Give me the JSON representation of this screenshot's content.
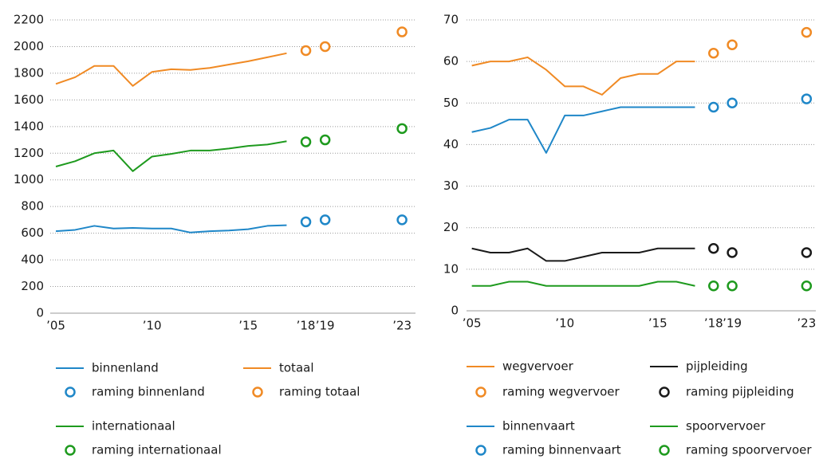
{
  "chart_data": [
    {
      "type": "line",
      "x": [
        2005,
        2006,
        2007,
        2008,
        2009,
        2010,
        2011,
        2012,
        2013,
        2014,
        2015,
        2016,
        2017,
        2018,
        2019,
        2023
      ],
      "xlim": [
        2004.5,
        2023.7
      ],
      "xticks": [
        {
          "value": 2005,
          "label": "’05"
        },
        {
          "value": 2010,
          "label": "’10"
        },
        {
          "value": 2015,
          "label": "’15"
        },
        {
          "value": 2018,
          "label": "’18"
        },
        {
          "value": 2019,
          "label": "’19"
        },
        {
          "value": 2023,
          "label": "’23"
        }
      ],
      "ylim": [
        0,
        2200
      ],
      "yticks": [
        0,
        200,
        400,
        600,
        800,
        1000,
        1200,
        1400,
        1600,
        1800,
        2000,
        2200
      ],
      "grid": true,
      "series": [
        {
          "name": "binnenland",
          "style": "line",
          "color": "#1f87c8",
          "values": [
            615,
            625,
            655,
            635,
            640,
            635,
            635,
            605,
            615,
            620,
            630,
            655,
            660,
            null,
            null,
            null
          ]
        },
        {
          "name": "totaal",
          "style": "line",
          "color": "#f08a24",
          "values": [
            1720,
            1770,
            1855,
            1855,
            1705,
            1810,
            1830,
            1825,
            1840,
            1865,
            1890,
            1920,
            1950,
            null,
            null,
            null
          ]
        },
        {
          "name": "raming binnenland",
          "style": "circle",
          "color": "#1f87c8",
          "values": [
            null,
            null,
            null,
            null,
            null,
            null,
            null,
            null,
            null,
            null,
            null,
            null,
            null,
            685,
            700,
            700
          ]
        },
        {
          "name": "raming totaal",
          "style": "circle",
          "color": "#f08a24",
          "values": [
            null,
            null,
            null,
            null,
            null,
            null,
            null,
            null,
            null,
            null,
            null,
            null,
            null,
            1970,
            2000,
            2110
          ]
        },
        {
          "name": "internationaal",
          "style": "line",
          "color": "#1e9a1e",
          "values": [
            1100,
            1140,
            1200,
            1220,
            1065,
            1175,
            1195,
            1220,
            1220,
            1235,
            1255,
            1265,
            1290,
            null,
            null,
            null
          ]
        },
        {
          "name": "raming internationaal",
          "style": "circle",
          "color": "#1e9a1e",
          "values": [
            null,
            null,
            null,
            null,
            null,
            null,
            null,
            null,
            null,
            null,
            null,
            null,
            null,
            1285,
            1300,
            1385
          ]
        }
      ]
    },
    {
      "type": "line",
      "x": [
        2005,
        2006,
        2007,
        2008,
        2009,
        2010,
        2011,
        2012,
        2013,
        2014,
        2015,
        2016,
        2017,
        2018,
        2019,
        2023
      ],
      "xlim": [
        2004.5,
        2023.5
      ],
      "xticks": [
        {
          "value": 2005,
          "label": "’05"
        },
        {
          "value": 2010,
          "label": "’10"
        },
        {
          "value": 2015,
          "label": "’15"
        },
        {
          "value": 2018,
          "label": "’18"
        },
        {
          "value": 2019,
          "label": "’19"
        },
        {
          "value": 2023,
          "label": "’23"
        }
      ],
      "ylim": [
        0,
        70
      ],
      "yticks": [
        0,
        10,
        20,
        30,
        40,
        50,
        60,
        70
      ],
      "grid": true,
      "series": [
        {
          "name": "wegvervoer",
          "style": "line",
          "color": "#f08a24",
          "values": [
            59,
            60,
            60,
            61,
            58,
            54,
            54,
            52,
            56,
            57,
            57,
            60,
            60,
            null,
            null,
            null
          ]
        },
        {
          "name": "pijpleiding",
          "style": "line",
          "color": "#1a1a1a",
          "values": [
            15,
            14,
            14,
            15,
            12,
            12,
            13,
            14,
            14,
            14,
            15,
            15,
            15,
            null,
            null,
            null
          ]
        },
        {
          "name": "raming wegvervoer",
          "style": "circle",
          "color": "#f08a24",
          "values": [
            null,
            null,
            null,
            null,
            null,
            null,
            null,
            null,
            null,
            null,
            null,
            null,
            null,
            62,
            64,
            67
          ]
        },
        {
          "name": "raming pijpleiding",
          "style": "circle",
          "color": "#1a1a1a",
          "values": [
            null,
            null,
            null,
            null,
            null,
            null,
            null,
            null,
            null,
            null,
            null,
            null,
            null,
            15,
            14,
            14
          ]
        },
        {
          "name": "binnenvaart",
          "style": "line",
          "color": "#1f87c8",
          "values": [
            43,
            44,
            46,
            46,
            38,
            47,
            47,
            48,
            49,
            49,
            49,
            49,
            49,
            null,
            null,
            null
          ]
        },
        {
          "name": "spoorvervoer",
          "style": "line",
          "color": "#1e9a1e",
          "values": [
            6,
            6,
            7,
            7,
            6,
            6,
            6,
            6,
            6,
            6,
            7,
            7,
            6,
            null,
            null,
            null
          ]
        },
        {
          "name": "raming binnenvaart",
          "style": "circle",
          "color": "#1f87c8",
          "values": [
            null,
            null,
            null,
            null,
            null,
            null,
            null,
            null,
            null,
            null,
            null,
            null,
            null,
            49,
            50,
            51
          ]
        },
        {
          "name": "raming spoorvervoer",
          "style": "circle",
          "color": "#1e9a1e",
          "values": [
            null,
            null,
            null,
            null,
            null,
            null,
            null,
            null,
            null,
            null,
            null,
            null,
            null,
            6,
            6,
            6
          ]
        }
      ]
    }
  ]
}
